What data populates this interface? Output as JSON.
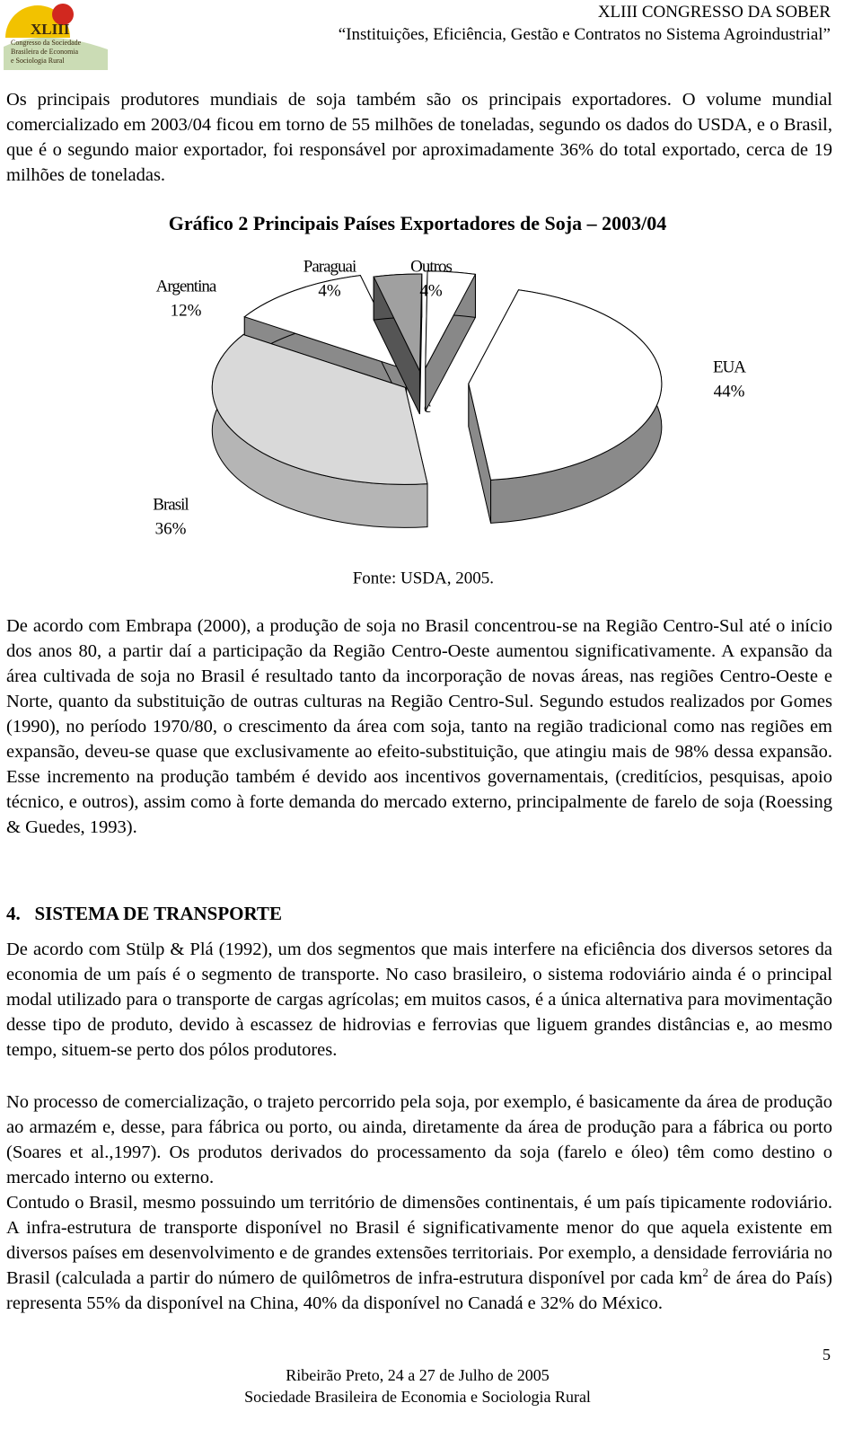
{
  "header": {
    "logo": {
      "title": "XLIII",
      "lines": [
        "Congresso da Sociedade",
        "Brasileira de Economia",
        "e Sociologia Rural"
      ]
    },
    "title": "XLIII CONGRESSO DA SOBER",
    "subtitle": "“Instituições, Eficiência, Gestão e Contratos no Sistema Agroindustrial”"
  },
  "paragraphs": [
    "Os principais produtores mundiais de soja também são os principais exportadores. O volume mundial comercializado em 2003/04 ficou em torno de 55 milhões de toneladas, segundo os dados do USDA, e o Brasil, que é o segundo maior exportador, foi responsável por aproximadamente 36% do total exportado, cerca de 19 milhões de toneladas.",
    "De acordo com Embrapa (2000), a produção de soja no Brasil concentrou-se na Região Centro-Sul até o início dos anos 80, a partir daí a participação da Região Centro-Oeste aumentou significativamente. A expansão da área cultivada de soja no Brasil é resultado tanto da incorporação de novas áreas, nas regiões Centro-Oeste e Norte, quanto da substituição de outras culturas na Região Centro-Sul. Segundo estudos realizados por Gomes (1990), no período 1970/80, o crescimento da área com soja, tanto na região tradicional como nas regiões em expansão, deveu-se quase que exclusivamente ao efeito-substituição, que atingiu mais de 98% dessa expansão. Esse incremento na produção também é devido aos incentivos governamentais, (creditícios, pesquisas, apoio técnico, e outros), assim como à forte demanda do mercado externo, principalmente de farelo de soja (Roessing & Guedes, 1993)."
  ],
  "chart_data": {
    "type": "pie",
    "title": "Gráfico 2 Principais Países Exportadores de Soja – 2003/04",
    "categories": [
      "EUA",
      "Brasil",
      "Argentina",
      "Paraguai",
      "Outros"
    ],
    "values": [
      44,
      36,
      12,
      4,
      4
    ],
    "value_labels": [
      "44%",
      "36%",
      "12%",
      "4%",
      "4%"
    ],
    "colors": [
      "#ffffff",
      "#d9d9d9",
      "#ffffff",
      "#a0a0a0",
      "#ffffff"
    ],
    "annotations": [
      "c"
    ],
    "source": "Fonte: USDA, 2005."
  },
  "section": {
    "heading": "4.   SISTEMA DE TRANSPORTE",
    "paragraphs": [
      "De acordo com Stülp & Plá (1992), um dos segmentos que mais interfere na eficiência dos diversos setores da economia de um país é o segmento de transporte. No caso brasileiro, o sistema rodoviário ainda é o principal modal utilizado para o transporte de cargas agrícolas; em muitos casos, é a única alternativa para movimentação desse tipo de produto, devido à escassez de hidrovias e ferrovias que liguem grandes distâncias e, ao mesmo tempo, situem-se perto dos pólos produtores.",
      "No processo de comercialização, o trajeto percorrido pela soja, por exemplo, é basicamente da área de produção ao armazém e, desse, para fábrica ou porto, ou ainda, diretamente da área de produção para a fábrica ou porto (Soares et al.,1997). Os produtos derivados do processamento da soja (farelo e óleo) têm como destino o mercado interno ou externo."
    ],
    "last_paragraph": {
      "before": "Contudo o Brasil, mesmo possuindo um território de dimensões continentais, é um país tipicamente rodoviário. A infra-estrutura de transporte disponível no Brasil é significativamente menor do que aquela existente em diversos países em desenvolvimento e de grandes extensões territoriais. Por exemplo, a densidade ferroviária no Brasil (calculada a partir do número de quilômetros de infra-estrutura disponível por cada km",
      "sup": "2",
      "after": " de área do País) representa 55% da disponível na China, 40% da disponível no Canadá e 32% do México."
    }
  },
  "footer": {
    "page": "5",
    "lines": [
      "Ribeirão Preto, 24 a 27 de Julho de 2005",
      "Sociedade Brasileira de Economia e Sociologia Rural"
    ]
  }
}
